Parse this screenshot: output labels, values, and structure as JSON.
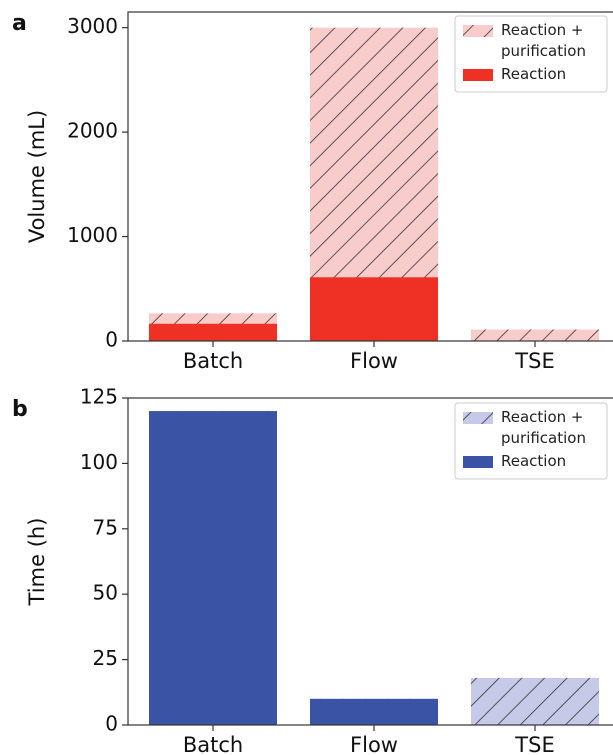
{
  "chart_data": [
    {
      "type": "bar",
      "panel_label": "a",
      "y_label": "Volume (mL)",
      "categories": [
        "Batch",
        "Flow",
        "TSE"
      ],
      "series": [
        {
          "name": "Reaction + purification",
          "color": "#f9cccc",
          "hatch": true,
          "values": [
            265,
            3000,
            110
          ]
        },
        {
          "name": "Reaction",
          "color": "#ee3124",
          "hatch": false,
          "values": [
            165,
            610,
            null
          ]
        }
      ],
      "ylim": [
        0,
        3150
      ],
      "yticks": [
        0,
        1000,
        2000,
        3000
      ],
      "legend": "upper right"
    },
    {
      "type": "bar",
      "panel_label": "b",
      "y_label": "Time (h)",
      "categories": [
        "Batch",
        "Flow",
        "TSE"
      ],
      "series": [
        {
          "name": "Reaction + purification",
          "color": "#c6c9e8",
          "hatch": true,
          "values": [
            120,
            10,
            18
          ]
        },
        {
          "name": "Reaction",
          "color": "#3a53a4",
          "hatch": false,
          "values": [
            120,
            10,
            null
          ]
        }
      ],
      "ylim": [
        0,
        125
      ],
      "yticks": [
        0,
        25,
        50,
        75,
        100,
        125
      ],
      "legend": "upper right"
    }
  ]
}
